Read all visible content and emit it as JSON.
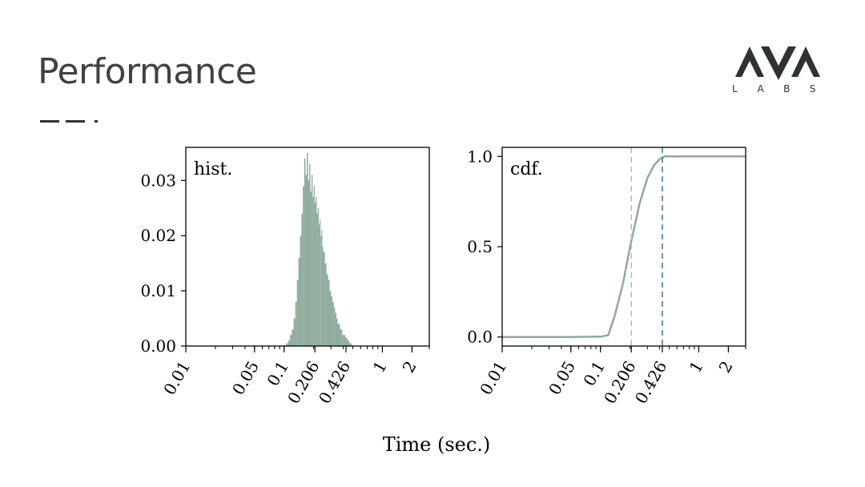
{
  "slide": {
    "title": "Performance",
    "logo_text": "LABS"
  },
  "chart_data": {
    "xlabel": "Time (sec.)",
    "xscale": "log",
    "xlim": [
      0.01,
      3.0
    ],
    "xticks": [
      0.01,
      0.05,
      0.1,
      0.206,
      0.426,
      1,
      2
    ],
    "xtick_labels": [
      "0.01",
      "0.05",
      "0.1",
      "0.206",
      "0.426",
      "1",
      "2"
    ],
    "panels": [
      {
        "type": "bar",
        "label": "hist.",
        "ylim": [
          0,
          0.036
        ],
        "yticks": [
          0.0,
          0.01,
          0.02,
          0.03
        ],
        "ytick_labels": [
          "0.00",
          "0.01",
          "0.02",
          "0.03"
        ],
        "color": "#8fab9b",
        "bins_x": [
          0.105,
          0.11,
          0.115,
          0.12,
          0.125,
          0.13,
          0.135,
          0.14,
          0.145,
          0.15,
          0.155,
          0.16,
          0.165,
          0.17,
          0.175,
          0.18,
          0.185,
          0.19,
          0.195,
          0.2,
          0.205,
          0.21,
          0.215,
          0.22,
          0.225,
          0.23,
          0.235,
          0.24,
          0.245,
          0.25,
          0.26,
          0.27,
          0.28,
          0.29,
          0.3,
          0.31,
          0.32,
          0.33,
          0.34,
          0.35,
          0.36,
          0.37,
          0.38,
          0.39,
          0.4,
          0.42,
          0.44,
          0.46
        ],
        "values": [
          0.0005,
          0.001,
          0.002,
          0.003,
          0.005,
          0.008,
          0.012,
          0.016,
          0.02,
          0.024,
          0.029,
          0.034,
          0.031,
          0.035,
          0.03,
          0.033,
          0.028,
          0.031,
          0.027,
          0.029,
          0.026,
          0.027,
          0.024,
          0.025,
          0.022,
          0.023,
          0.02,
          0.021,
          0.018,
          0.017,
          0.015,
          0.013,
          0.012,
          0.01,
          0.009,
          0.008,
          0.007,
          0.006,
          0.005,
          0.004,
          0.004,
          0.003,
          0.003,
          0.002,
          0.002,
          0.0015,
          0.001,
          0.0005
        ]
      },
      {
        "type": "line",
        "label": "cdf.",
        "ylim": [
          -0.05,
          1.05
        ],
        "yticks": [
          0.0,
          0.5,
          1.0
        ],
        "ytick_labels": [
          "0.0",
          "0.5",
          "1.0"
        ],
        "color": "#8fa8a1",
        "x": [
          0.01,
          0.05,
          0.1,
          0.12,
          0.14,
          0.17,
          0.2,
          0.25,
          0.3,
          0.35,
          0.4,
          0.45,
          0.5,
          1,
          2,
          3
        ],
        "y": [
          0.0,
          0.0,
          0.002,
          0.01,
          0.12,
          0.3,
          0.5,
          0.74,
          0.88,
          0.95,
          0.985,
          1.0,
          1.0,
          1.0,
          1.0,
          1.0
        ],
        "vlines": [
          {
            "x": 0.206,
            "color": "#a9bec7",
            "style": "dashed"
          },
          {
            "x": 0.426,
            "color": "#3a70a8",
            "style": "dashed"
          }
        ]
      }
    ]
  }
}
